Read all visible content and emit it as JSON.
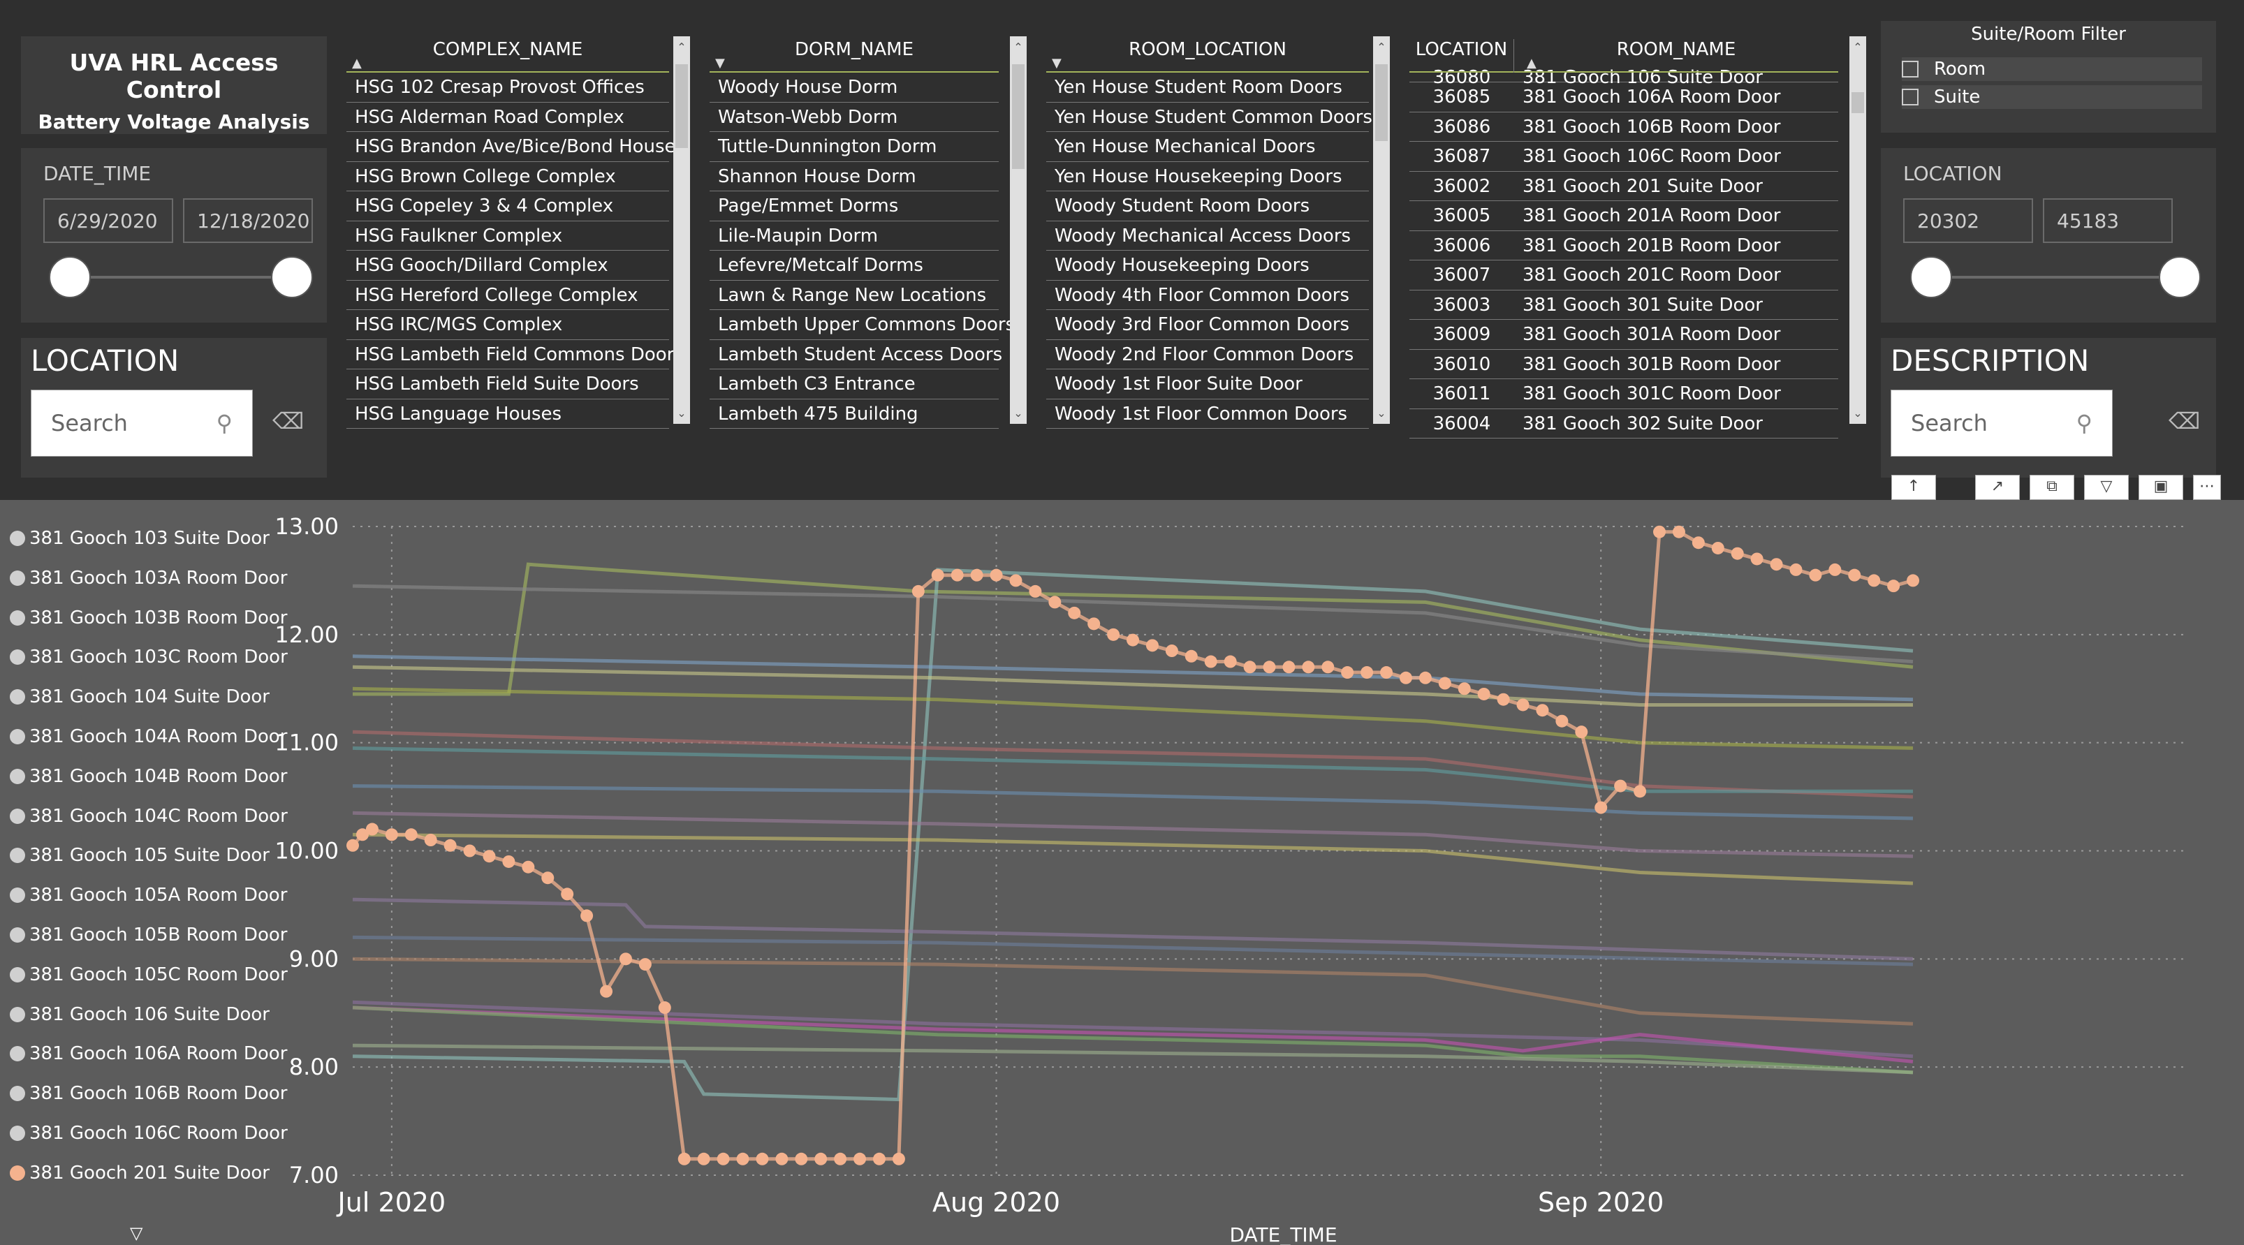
{
  "title": {
    "line1": "UVA HRL Access Control",
    "line2": "Battery Voltage Analysis"
  },
  "date_slicer": {
    "label": "DATE_TIME",
    "from": "6/29/2020",
    "to": "12/18/2020",
    "low_fraction": 0.0,
    "high_fraction": 1.0
  },
  "location_range": {
    "label": "LOCATION",
    "from": "20302",
    "to": "45183",
    "low_fraction": 0.0,
    "high_fraction": 1.0
  },
  "location_search": {
    "heading": "LOCATION",
    "placeholder": "Search"
  },
  "description_search": {
    "heading": "DESCRIPTION",
    "placeholder": "Search"
  },
  "suite_room_filter": {
    "title": "Suite/Room Filter",
    "options": [
      "Room",
      "Suite"
    ]
  },
  "complex_table": {
    "header": "COMPLEX_NAME",
    "rows": [
      "HSG 102 Cresap Provost Offices",
      "HSG Alderman Road Complex",
      "HSG Brandon Ave/Bice/Bond Houses",
      "HSG Brown College Complex",
      "HSG Copeley 3 & 4 Complex",
      "HSG Faulkner Complex",
      "HSG Gooch/Dillard Complex",
      "HSG Hereford College Complex",
      "HSG IRC/MGS Complex",
      "HSG Lambeth Field Commons Doors",
      "HSG Lambeth Field Suite Doors",
      "HSG Language Houses"
    ]
  },
  "dorm_table": {
    "header": "DORM_NAME",
    "rows": [
      "Woody House Dorm",
      "Watson-Webb Dorm",
      "Tuttle-Dunnington Dorm",
      "Shannon House Dorm",
      "Page/Emmet Dorms",
      "Lile-Maupin Dorm",
      "Lefevre/Metcalf Dorms",
      "Lawn & Range New Locations",
      "Lambeth Upper Commons Doors",
      "Lambeth Student Access Doors",
      "Lambeth C3 Entrance",
      "Lambeth 475 Building"
    ]
  },
  "room_location_table": {
    "header": "ROOM_LOCATION",
    "rows": [
      "Yen House Student Room Doors",
      "Yen House Student Common Doors",
      "Yen House Mechanical Doors",
      "Yen House Housekeeping Doors",
      "Woody Student Room Doors",
      "Woody Mechanical Access Doors",
      "Woody Housekeeping Doors",
      "Woody 4th Floor Common Doors",
      "Woody 3rd Floor Common Doors",
      "Woody 2nd Floor Common Doors",
      "Woody 1st Floor Suite Door",
      "Woody 1st Floor Common Doors"
    ]
  },
  "location_table": {
    "headers": [
      "LOCATION",
      "ROOM_NAME"
    ],
    "rows": [
      [
        "36080",
        "381 Gooch 106 Suite Door"
      ],
      [
        "36085",
        "381 Gooch 106A Room Door"
      ],
      [
        "36086",
        "381 Gooch 106B Room Door"
      ],
      [
        "36087",
        "381 Gooch 106C Room Door"
      ],
      [
        "36002",
        "381 Gooch 201 Suite Door"
      ],
      [
        "36005",
        "381 Gooch 201A Room Door"
      ],
      [
        "36006",
        "381 Gooch 201B Room Door"
      ],
      [
        "36007",
        "381 Gooch 201C Room Door"
      ],
      [
        "36003",
        "381 Gooch 301 Suite Door"
      ],
      [
        "36009",
        "381 Gooch 301A Room Door"
      ],
      [
        "36010",
        "381 Gooch 301B Room Door"
      ],
      [
        "36011",
        "381 Gooch 301C Room Door"
      ],
      [
        "36004",
        "381 Gooch 302 Suite Door"
      ]
    ]
  },
  "legend": {
    "items": [
      "381 Gooch 103 Suite Door",
      "381 Gooch 103A Room Door",
      "381 Gooch 103B Room Door",
      "381 Gooch 103C Room Door",
      "381 Gooch 104 Suite Door",
      "381 Gooch 104A Room Door",
      "381 Gooch 104B Room Door",
      "381 Gooch 104C Room Door",
      "381 Gooch 105 Suite Door",
      "381 Gooch 105A Room Door",
      "381 Gooch 105B Room Door",
      "381 Gooch 105C Room Door",
      "381 Gooch 106 Suite Door",
      "381 Gooch 106A Room Door",
      "381 Gooch 106B Room Door",
      "381 Gooch 106C Room Door",
      "381 Gooch 201 Suite Door"
    ],
    "highlight_color": "#f4b28e",
    "default_color": "#d0d0d0"
  },
  "chart_data": {
    "type": "line",
    "xlabel": "DATE_TIME",
    "ylabel": "",
    "x_ticks": [
      "Jul 2020",
      "Aug 2020",
      "Sep 2020"
    ],
    "x_tick_days": [
      2,
      33,
      64
    ],
    "xlim_days": [
      0,
      94
    ],
    "ylim": [
      7.0,
      13.0
    ],
    "y_ticks": [
      "7.00",
      "8.00",
      "9.00",
      "10.00",
      "11.00",
      "12.00",
      "13.00"
    ],
    "grid": true,
    "highlight": {
      "name": "381 Gooch 201 Suite Door",
      "color": "#f4b28e",
      "points": [
        [
          0,
          10.05
        ],
        [
          0.5,
          10.15
        ],
        [
          1,
          10.2
        ],
        [
          2,
          10.15
        ],
        [
          3,
          10.15
        ],
        [
          4,
          10.1
        ],
        [
          5,
          10.05
        ],
        [
          6,
          10.0
        ],
        [
          7,
          9.95
        ],
        [
          8,
          9.9
        ],
        [
          9,
          9.85
        ],
        [
          10,
          9.75
        ],
        [
          11,
          9.6
        ],
        [
          12,
          9.4
        ],
        [
          13,
          8.7
        ],
        [
          14,
          9.0
        ],
        [
          15,
          8.95
        ],
        [
          16,
          8.55
        ],
        [
          17,
          7.15
        ],
        [
          18,
          7.15
        ],
        [
          19,
          7.15
        ],
        [
          20,
          7.15
        ],
        [
          21,
          7.15
        ],
        [
          22,
          7.15
        ],
        [
          23,
          7.15
        ],
        [
          24,
          7.15
        ],
        [
          25,
          7.15
        ],
        [
          26,
          7.15
        ],
        [
          27,
          7.15
        ],
        [
          28,
          7.15
        ],
        [
          29,
          12.4
        ],
        [
          30,
          12.55
        ],
        [
          31,
          12.55
        ],
        [
          32,
          12.55
        ],
        [
          33,
          12.55
        ],
        [
          34,
          12.5
        ],
        [
          35,
          12.4
        ],
        [
          36,
          12.3
        ],
        [
          37,
          12.2
        ],
        [
          38,
          12.1
        ],
        [
          39,
          12.0
        ],
        [
          40,
          11.95
        ],
        [
          41,
          11.9
        ],
        [
          42,
          11.85
        ],
        [
          43,
          11.8
        ],
        [
          44,
          11.75
        ],
        [
          45,
          11.75
        ],
        [
          46,
          11.7
        ],
        [
          47,
          11.7
        ],
        [
          48,
          11.7
        ],
        [
          49,
          11.7
        ],
        [
          50,
          11.7
        ],
        [
          51,
          11.65
        ],
        [
          52,
          11.65
        ],
        [
          53,
          11.65
        ],
        [
          54,
          11.6
        ],
        [
          55,
          11.6
        ],
        [
          56,
          11.55
        ],
        [
          57,
          11.5
        ],
        [
          58,
          11.45
        ],
        [
          59,
          11.4
        ],
        [
          60,
          11.35
        ],
        [
          61,
          11.3
        ],
        [
          62,
          11.2
        ],
        [
          63,
          11.1
        ],
        [
          64,
          10.4
        ],
        [
          65,
          10.6
        ],
        [
          66,
          10.55
        ],
        [
          67,
          12.95
        ],
        [
          68,
          12.95
        ],
        [
          69,
          12.85
        ],
        [
          70,
          12.8
        ],
        [
          71,
          12.75
        ],
        [
          72,
          12.7
        ],
        [
          73,
          12.65
        ],
        [
          74,
          12.6
        ],
        [
          75,
          12.55
        ],
        [
          76,
          12.6
        ],
        [
          77,
          12.55
        ],
        [
          78,
          12.5
        ],
        [
          79,
          12.45
        ],
        [
          80,
          12.5
        ]
      ]
    },
    "series": [
      {
        "color": "#a7bb5f",
        "points": [
          [
            0,
            11.45
          ],
          [
            8,
            11.45
          ],
          [
            9,
            12.65
          ],
          [
            29,
            12.4
          ],
          [
            55,
            12.3
          ],
          [
            66,
            11.95
          ],
          [
            80,
            11.7
          ]
        ]
      },
      {
        "color": "#8fc3bd",
        "points": [
          [
            0,
            8.1
          ],
          [
            17,
            8.05
          ],
          [
            18,
            7.75
          ],
          [
            28,
            7.7
          ],
          [
            30,
            12.6
          ],
          [
            55,
            12.4
          ],
          [
            66,
            12.05
          ],
          [
            80,
            11.85
          ]
        ]
      },
      {
        "color": "#8a8a8a",
        "points": [
          [
            0,
            12.45
          ],
          [
            30,
            12.35
          ],
          [
            55,
            12.2
          ],
          [
            66,
            11.9
          ],
          [
            80,
            11.75
          ]
        ]
      },
      {
        "color": "#7fa4c8",
        "points": [
          [
            0,
            11.8
          ],
          [
            30,
            11.7
          ],
          [
            55,
            11.6
          ],
          [
            66,
            11.45
          ],
          [
            80,
            11.4
          ]
        ]
      },
      {
        "color": "#c9c98a",
        "points": [
          [
            0,
            11.7
          ],
          [
            30,
            11.6
          ],
          [
            55,
            11.45
          ],
          [
            66,
            11.35
          ],
          [
            80,
            11.35
          ]
        ]
      },
      {
        "color": "#a7b04a",
        "points": [
          [
            0,
            11.5
          ],
          [
            30,
            11.4
          ],
          [
            55,
            11.2
          ],
          [
            66,
            11.0
          ],
          [
            80,
            10.95
          ]
        ]
      },
      {
        "color": "#b06a6a",
        "points": [
          [
            0,
            11.1
          ],
          [
            30,
            10.95
          ],
          [
            55,
            10.85
          ],
          [
            66,
            10.6
          ],
          [
            80,
            10.5
          ]
        ]
      },
      {
        "color": "#5f9ea0",
        "points": [
          [
            0,
            10.95
          ],
          [
            30,
            10.85
          ],
          [
            55,
            10.75
          ],
          [
            66,
            10.55
          ],
          [
            80,
            10.55
          ]
        ]
      },
      {
        "color": "#6b8fb3",
        "points": [
          [
            0,
            10.6
          ],
          [
            30,
            10.55
          ],
          [
            55,
            10.45
          ],
          [
            66,
            10.35
          ],
          [
            80,
            10.3
          ]
        ]
      },
      {
        "color": "#9a7c9a",
        "points": [
          [
            0,
            10.35
          ],
          [
            30,
            10.25
          ],
          [
            55,
            10.15
          ],
          [
            66,
            10.0
          ],
          [
            80,
            9.95
          ]
        ]
      },
      {
        "color": "#c9bf6a",
        "points": [
          [
            0,
            10.15
          ],
          [
            30,
            10.1
          ],
          [
            55,
            10.0
          ],
          [
            66,
            9.8
          ],
          [
            80,
            9.7
          ]
        ]
      },
      {
        "color": "#8e7a9e",
        "points": [
          [
            0,
            9.55
          ],
          [
            14,
            9.5
          ],
          [
            15,
            9.3
          ],
          [
            30,
            9.25
          ],
          [
            55,
            9.15
          ],
          [
            80,
            9.0
          ]
        ]
      },
      {
        "color": "#6d7f9c",
        "points": [
          [
            0,
            9.2
          ],
          [
            30,
            9.15
          ],
          [
            55,
            9.05
          ],
          [
            80,
            8.95
          ]
        ]
      },
      {
        "color": "#b08468",
        "points": [
          [
            0,
            9.0
          ],
          [
            30,
            8.95
          ],
          [
            55,
            8.85
          ],
          [
            66,
            8.5
          ],
          [
            80,
            8.4
          ]
        ]
      },
      {
        "color": "#8c6f9f",
        "points": [
          [
            0,
            8.6
          ],
          [
            30,
            8.4
          ],
          [
            55,
            8.3
          ],
          [
            66,
            8.25
          ],
          [
            80,
            8.1
          ]
        ]
      },
      {
        "color": "#c451b2",
        "points": [
          [
            0,
            8.55
          ],
          [
            30,
            8.35
          ],
          [
            55,
            8.25
          ],
          [
            60,
            8.15
          ],
          [
            66,
            8.3
          ],
          [
            80,
            8.05
          ]
        ]
      },
      {
        "color": "#7fb46a",
        "points": [
          [
            0,
            8.55
          ],
          [
            30,
            8.3
          ],
          [
            55,
            8.2
          ],
          [
            60,
            8.1
          ],
          [
            66,
            8.1
          ],
          [
            80,
            7.95
          ]
        ]
      },
      {
        "color": "#9fb28f",
        "points": [
          [
            0,
            8.2
          ],
          [
            30,
            8.15
          ],
          [
            55,
            8.1
          ],
          [
            66,
            8.05
          ],
          [
            80,
            7.95
          ]
        ]
      }
    ]
  }
}
